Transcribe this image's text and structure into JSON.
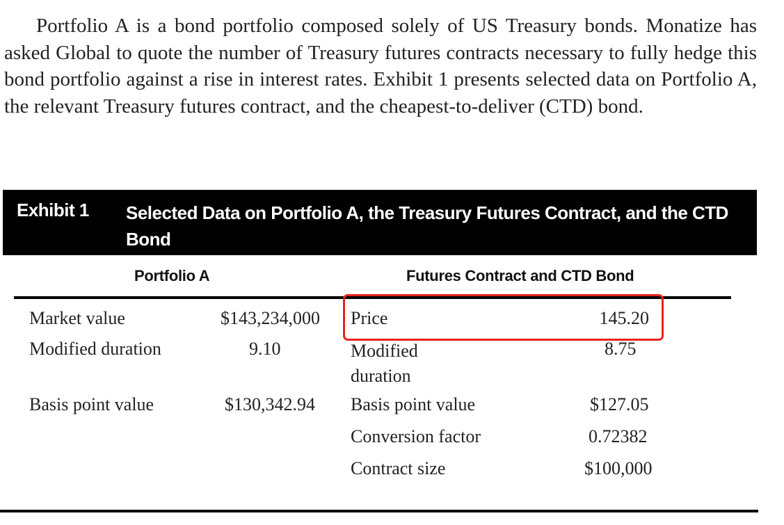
{
  "paragraph": "Portfolio A is a bond portfolio composed solely of US Treasury bonds. Monatize has asked Global to quote the number of Treasury futures contracts necessary to fully hedge this bond portfolio against a rise in interest rates. Exhibit 1 presents selected data on Portfolio A, the relevant Treasury futures contract, and the cheapest-to-deliver (CTD) bond.",
  "exhibit": {
    "label": "Exhibit 1",
    "title": "Selected Data on Portfolio A, the Treasury Futures Contract, and the CTD Bond",
    "headers": {
      "left": "Portfolio A",
      "right": "Futures Contract and CTD Bond"
    },
    "portfolio_a": [
      {
        "label": "Market value",
        "value": "$143,234,000"
      },
      {
        "label": "Modified duration",
        "value": "9.10"
      },
      {
        "label": "Basis point value",
        "value": "$130,342.94"
      }
    ],
    "futures": [
      {
        "label": "Price",
        "value": "145.20"
      },
      {
        "label": "Modified duration",
        "value": "8.75"
      },
      {
        "label": "Basis point value",
        "value": "$127.05"
      },
      {
        "label": "Conversion factor",
        "value": "0.72382"
      },
      {
        "label": "Contract size",
        "value": "$100,000"
      }
    ],
    "highlight_color": "#e8231c"
  }
}
